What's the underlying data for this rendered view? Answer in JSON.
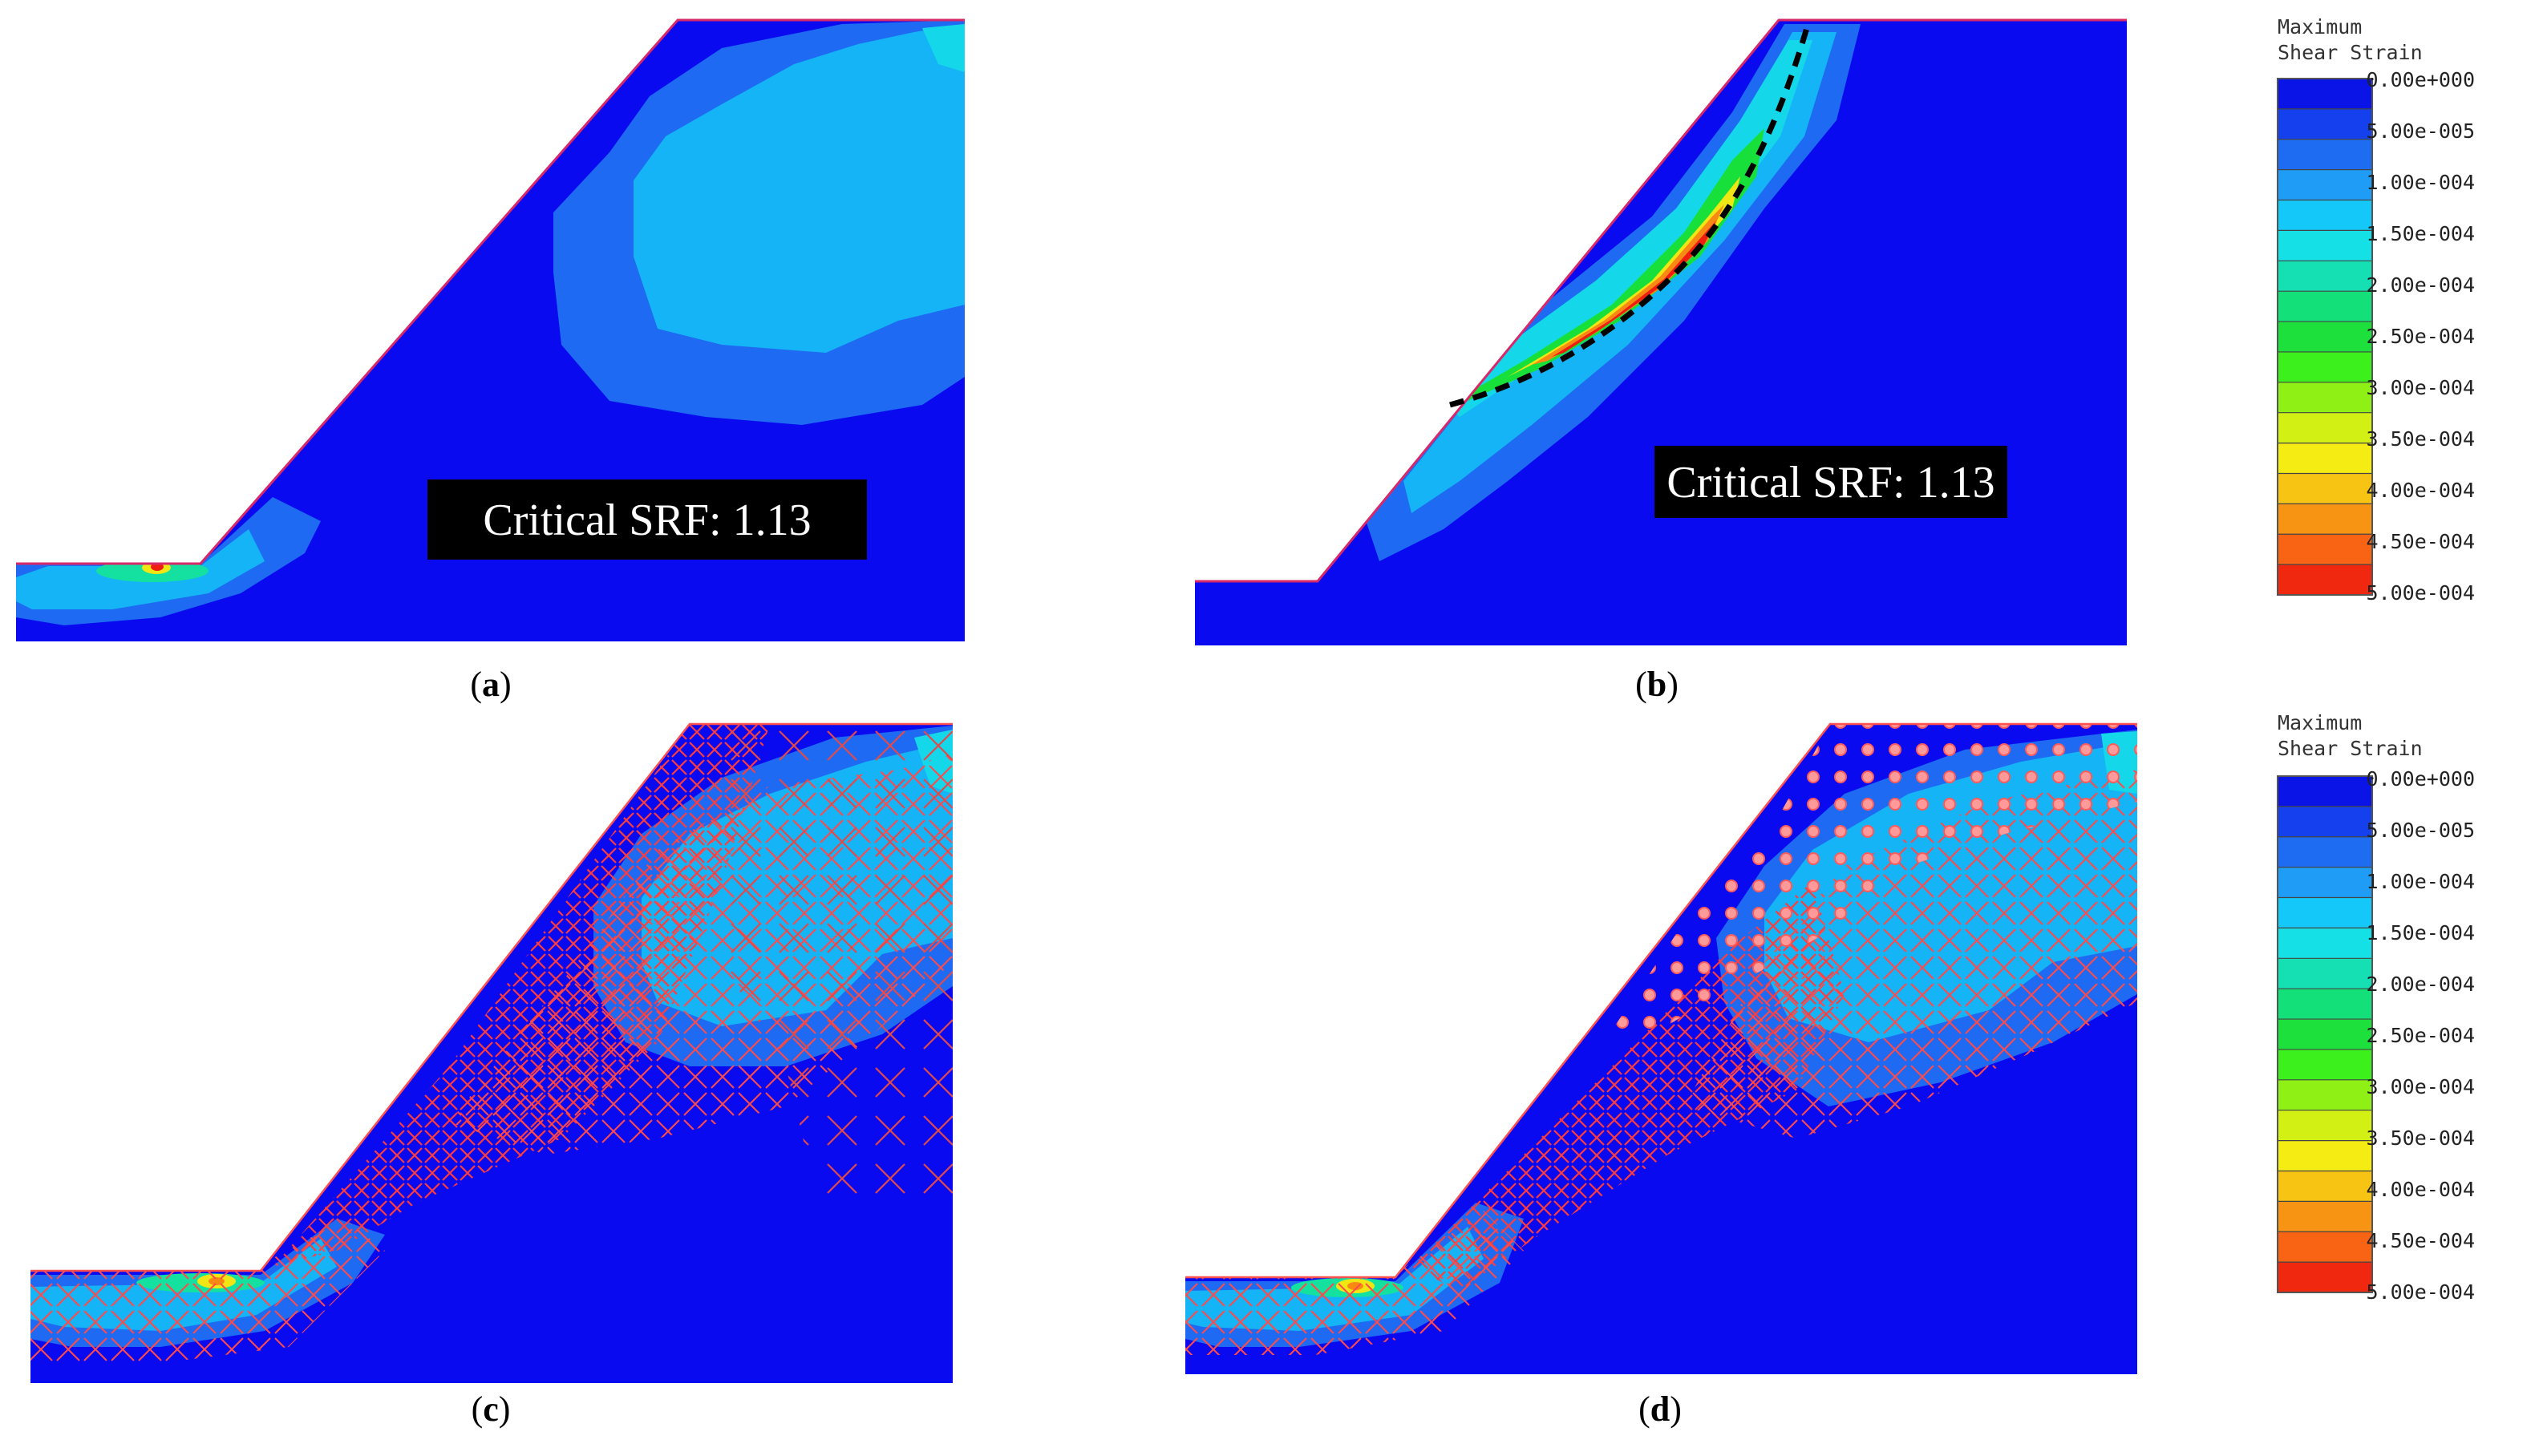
{
  "panels": [
    {
      "id": "a",
      "caption_open": "(",
      "caption_letter": "a",
      "caption_close": ")",
      "srf_label": "Critical SRF: 1.13"
    },
    {
      "id": "b",
      "caption_open": "(",
      "caption_letter": "b",
      "caption_close": ")",
      "srf_label": "Critical SRF: 1.13"
    },
    {
      "id": "c",
      "caption_open": "(",
      "caption_letter": "c",
      "caption_close": ")"
    },
    {
      "id": "d",
      "caption_open": "(",
      "caption_letter": "d",
      "caption_close": ")"
    }
  ],
  "legends": [
    {
      "title_line1": "Maximum",
      "title_line2": "Shear Strain"
    },
    {
      "title_line1": "Maximum",
      "title_line2": "Shear Strain"
    }
  ],
  "legend_ticks": [
    "0.00e+000",
    "5.00e-005",
    "1.00e-004",
    "1.50e-004",
    "2.00e-004",
    "2.50e-004",
    "3.00e-004",
    "3.50e-004",
    "4.00e-004",
    "4.50e-004",
    "5.00e-004"
  ],
  "legend_colors": [
    "#0a14e6",
    "#1440ee",
    "#1e6cf2",
    "#1e9cf6",
    "#14c8fa",
    "#14e0e6",
    "#14e0b4",
    "#14e07a",
    "#1ee03c",
    "#3cf01e",
    "#8ef014",
    "#d2f014",
    "#f5ec14",
    "#f8c414",
    "#f89414",
    "#f86414",
    "#f02810"
  ],
  "colors": {
    "background_field": "#0a0af0",
    "contour_lvl1": "#1e6af2",
    "contour_lvl2": "#14b4f6",
    "contour_lvl3": "#14d8ea",
    "contour_green": "#18e03a",
    "contour_yellow": "#f0e614",
    "contour_orange": "#f88a14",
    "contour_red": "#f01e10",
    "slip_surface": "#000000",
    "yield_marks": "#ff3c3c",
    "srf_box": "#000000"
  }
}
